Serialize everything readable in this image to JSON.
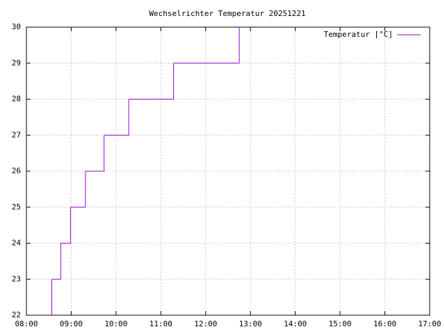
{
  "chart_data": {
    "type": "line",
    "title": "Wechselrichter Temperatur 20251221",
    "x": [
      "08:34",
      "08:34",
      "08:46",
      "08:59",
      "09:19",
      "09:44",
      "10:17",
      "11:17",
      "12:45"
    ],
    "series": [
      {
        "name": "Temperatur [°C]",
        "color": "#9400d3",
        "values": [
          22,
          23,
          24,
          25,
          26,
          27,
          28,
          29,
          30
        ]
      }
    ],
    "xlim": [
      "08:00",
      "17:00"
    ],
    "xticks": [
      "08:00",
      "09:00",
      "10:00",
      "11:00",
      "12:00",
      "13:00",
      "14:00",
      "15:00",
      "16:00",
      "17:00"
    ],
    "ylim": [
      22,
      30
    ],
    "yticks": [
      22,
      23,
      24,
      25,
      26,
      27,
      28,
      29,
      30
    ],
    "grid": true,
    "legend": "top-right"
  }
}
